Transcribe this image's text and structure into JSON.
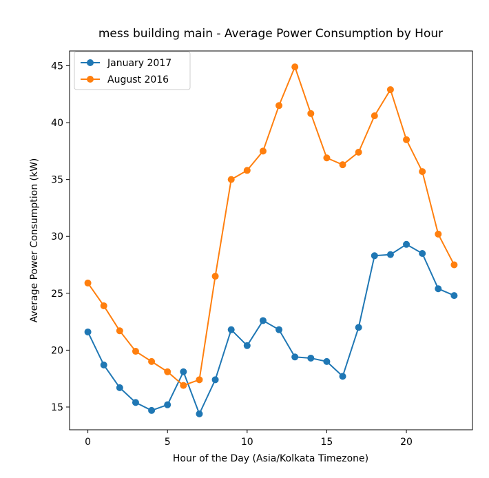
{
  "chart_data": {
    "type": "line",
    "title": "mess building main - Average Power Consumption by Hour",
    "xlabel": "Hour of the Day (Asia/Kolkata Timezone)",
    "ylabel": "Average Power Consumption (kW)",
    "xlim": [
      -1.15,
      24.15
    ],
    "ylim": [
      13.0,
      46.3
    ],
    "xticks": [
      0,
      5,
      10,
      15,
      20
    ],
    "yticks": [
      15,
      20,
      25,
      30,
      35,
      40,
      45
    ],
    "grid": false,
    "legend_position": "upper-left",
    "x": [
      0,
      1,
      2,
      3,
      4,
      5,
      6,
      7,
      8,
      9,
      10,
      11,
      12,
      13,
      14,
      15,
      16,
      17,
      18,
      19,
      20,
      21,
      22,
      23
    ],
    "series": [
      {
        "name": "January 2017",
        "color": "#1f77b4",
        "values": [
          21.6,
          18.7,
          16.7,
          15.4,
          14.7,
          15.2,
          18.1,
          14.4,
          17.4,
          21.8,
          20.4,
          22.6,
          21.8,
          19.4,
          19.3,
          19.0,
          17.7,
          22.0,
          28.3,
          28.4,
          29.3,
          28.5,
          25.4,
          24.8
        ]
      },
      {
        "name": "August 2016",
        "color": "#ff7f0e",
        "values": [
          25.9,
          23.9,
          21.7,
          19.9,
          19.0,
          18.1,
          16.9,
          17.4,
          26.5,
          35.0,
          35.8,
          37.5,
          41.5,
          44.9,
          40.8,
          36.9,
          36.3,
          37.4,
          40.6,
          42.9,
          38.5,
          35.7,
          30.2,
          27.5
        ]
      }
    ]
  }
}
